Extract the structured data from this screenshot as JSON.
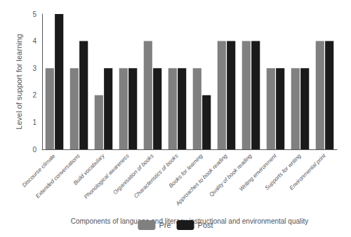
{
  "chart_data": {
    "type": "bar",
    "xlabel": "Components of language and literacy instructional and environmental quality",
    "ylabel": "Level of support for learning",
    "categories": [
      "Discourse climate",
      "Extended conversations",
      "Build vocabulary",
      "Phonological awareness",
      "Organisation of books",
      "Characteristics of books",
      "Books for learning",
      "Approaches to book reading",
      "Quality of book reading",
      "Writing environment",
      "Supports for writing",
      "Environmental print"
    ],
    "series": [
      {
        "name": "Pre",
        "color": "#808080",
        "values": [
          3,
          3,
          2,
          3,
          4,
          3,
          3,
          4,
          4,
          3,
          3,
          4
        ]
      },
      {
        "name": "Post",
        "color": "#1a1a1a",
        "values": [
          5,
          4,
          3,
          3,
          3,
          3,
          2,
          4,
          4,
          3,
          3,
          4
        ]
      }
    ],
    "ylim": [
      0,
      5
    ],
    "yticks": [
      0,
      1,
      2,
      3,
      4,
      5
    ],
    "grid": false,
    "legend": "bottom"
  }
}
